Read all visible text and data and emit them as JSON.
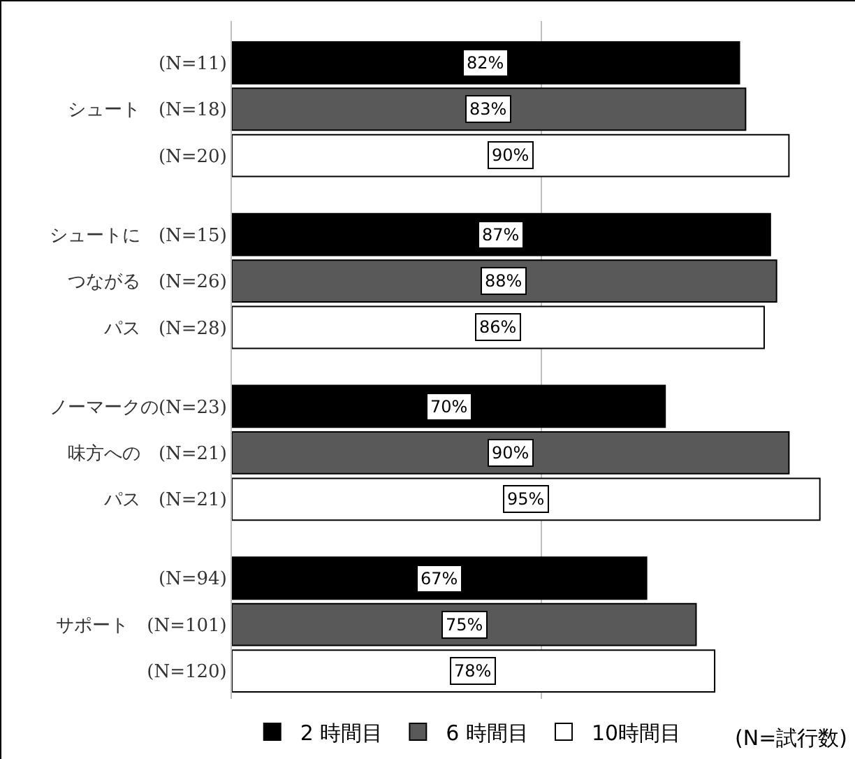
{
  "chart_data": {
    "type": "bar",
    "orientation": "horizontal",
    "categories": [
      "(N=11)",
      "シュート　(N=18)",
      "(N=20)",
      "シュートに　(N=15)",
      "つながる　(N=26)",
      "パス　(N=28)",
      "ノーマークの(N=23)",
      "味方への　(N=21)",
      "パス　(N=21)",
      "(N=94)",
      "サポート　(N=101)",
      "(N=120)"
    ],
    "series": [
      {
        "name": "2 時間目",
        "color": "#000000",
        "values": [
          82,
          null,
          null,
          87,
          null,
          null,
          70,
          null,
          null,
          67,
          null,
          null
        ],
        "value_labels": [
          "82%",
          null,
          null,
          "87%",
          null,
          null,
          "70%",
          null,
          null,
          "67%",
          null,
          null
        ]
      },
      {
        "name": "6 時間目",
        "color": "#595959",
        "values": [
          null,
          83,
          null,
          null,
          88,
          null,
          null,
          90,
          null,
          null,
          75,
          null
        ],
        "value_labels": [
          null,
          "83%",
          null,
          null,
          "88%",
          null,
          null,
          "90%",
          null,
          null,
          "75%",
          null
        ]
      },
      {
        "name": "10時間目",
        "color": "#ffffff",
        "values": [
          null,
          null,
          90,
          null,
          null,
          86,
          null,
          null,
          95,
          null,
          null,
          78
        ],
        "value_labels": [
          null,
          null,
          "90%",
          null,
          null,
          "86%",
          null,
          null,
          "95%",
          null,
          null,
          "78%"
        ]
      }
    ],
    "ref_lines": [
      {
        "axis": "x",
        "value": 50,
        "color": "#bfbfbf"
      }
    ],
    "tick_labels": "y",
    "legend": "bottom",
    "annotations": [
      "(N=試行数)"
    ]
  }
}
